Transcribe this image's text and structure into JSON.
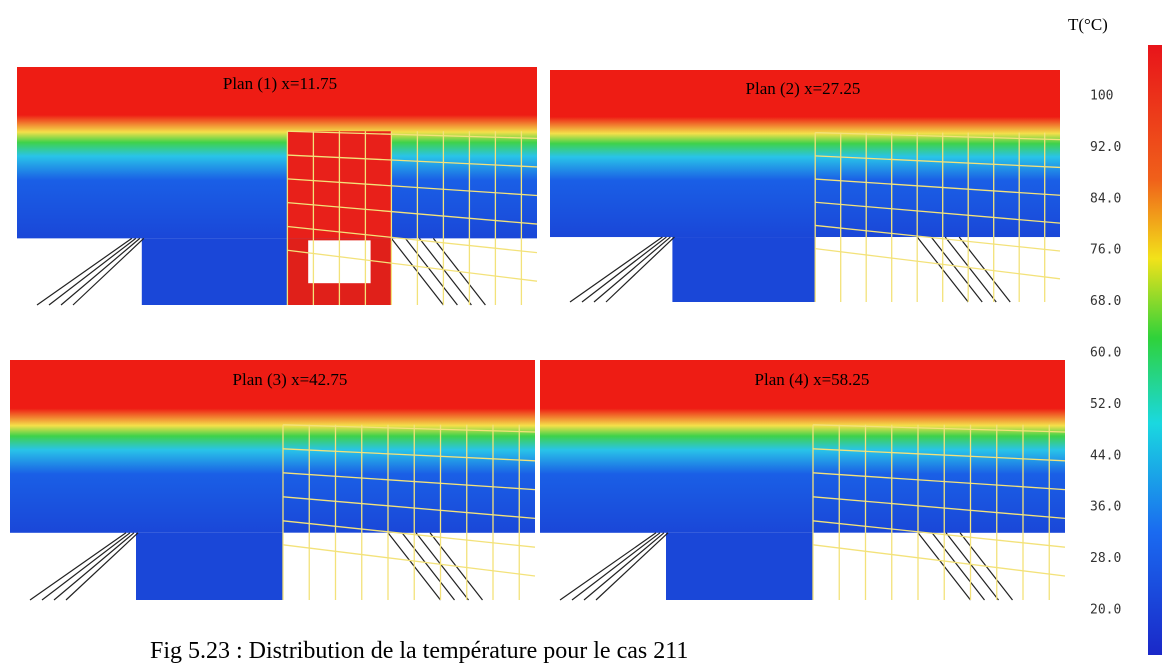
{
  "figure": {
    "panels": [
      {
        "label": "Plan (1)  x=11.75"
      },
      {
        "label": "Plan (2) x=27.25"
      },
      {
        "label": "Plan (3) x=42.75"
      },
      {
        "label": "Plan (4)  x=58.25"
      }
    ],
    "colorbar": {
      "unit": "T(°C)",
      "ticks": [
        "100",
        "92.0",
        "84.0",
        "76.0",
        "68.0",
        "60.0",
        "52.0",
        "44.0",
        "36.0",
        "28.0",
        "20.0"
      ]
    },
    "caption": "Fig 5.23 : Distribution de la température pour le cas 211"
  }
}
